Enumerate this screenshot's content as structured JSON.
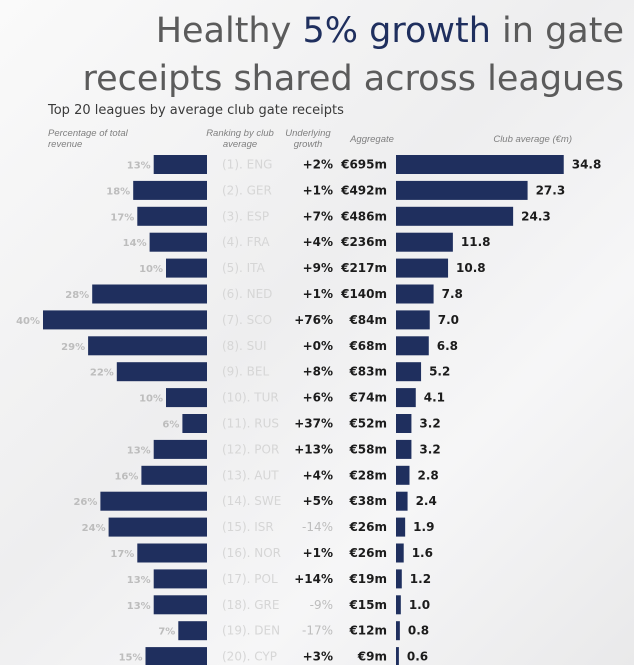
{
  "headline": {
    "line1_pre": "Healthy ",
    "line1_highlight": "5% growth",
    "line1_post": " in gate",
    "line2": "receipts shared across leagues"
  },
  "chart_data": {
    "type": "bar",
    "title": "Top 20 leagues by average club gate receipts",
    "column_headers": {
      "percentage": "Percentage of total revenue",
      "ranking": "Ranking by club average",
      "growth": "Underlying growth",
      "aggregate": "Aggregate",
      "club_average": "Club average (€m)"
    },
    "rows": [
      {
        "rank": "(1). ENG",
        "pct": 13,
        "pct_label": "13%",
        "growth": "+2%",
        "aggregate": "€695m",
        "avg": 34.8,
        "avg_label": "34.8"
      },
      {
        "rank": "(2). GER",
        "pct": 18,
        "pct_label": "18%",
        "growth": "+1%",
        "aggregate": "€492m",
        "avg": 27.3,
        "avg_label": "27.3"
      },
      {
        "rank": "(3). ESP",
        "pct": 17,
        "pct_label": "17%",
        "growth": "+7%",
        "aggregate": "€486m",
        "avg": 24.3,
        "avg_label": "24.3"
      },
      {
        "rank": "(4). FRA",
        "pct": 14,
        "pct_label": "14%",
        "growth": "+4%",
        "aggregate": "€236m",
        "avg": 11.8,
        "avg_label": "11.8"
      },
      {
        "rank": "(5). ITA",
        "pct": 10,
        "pct_label": "10%",
        "growth": "+9%",
        "aggregate": "€217m",
        "avg": 10.8,
        "avg_label": "10.8"
      },
      {
        "rank": "(6). NED",
        "pct": 28,
        "pct_label": "28%",
        "growth": "+1%",
        "aggregate": "€140m",
        "avg": 7.8,
        "avg_label": "7.8"
      },
      {
        "rank": "(7). SCO",
        "pct": 40,
        "pct_label": "40%",
        "growth": "+76%",
        "aggregate": "€84m",
        "avg": 7.0,
        "avg_label": "7.0"
      },
      {
        "rank": "(8). SUI",
        "pct": 29,
        "pct_label": "29%",
        "growth": "+0%",
        "aggregate": "€68m",
        "avg": 6.8,
        "avg_label": "6.8"
      },
      {
        "rank": "(9). BEL",
        "pct": 22,
        "pct_label": "22%",
        "growth": "+8%",
        "aggregate": "€83m",
        "avg": 5.2,
        "avg_label": "5.2"
      },
      {
        "rank": "(10). TUR",
        "pct": 10,
        "pct_label": "10%",
        "growth": "+6%",
        "aggregate": "€74m",
        "avg": 4.1,
        "avg_label": "4.1"
      },
      {
        "rank": "(11). RUS",
        "pct": 6,
        "pct_label": "6%",
        "growth": "+37%",
        "aggregate": "€52m",
        "avg": 3.2,
        "avg_label": "3.2"
      },
      {
        "rank": "(12). POR",
        "pct": 13,
        "pct_label": "13%",
        "growth": "+13%",
        "aggregate": "€58m",
        "avg": 3.2,
        "avg_label": "3.2"
      },
      {
        "rank": "(13). AUT",
        "pct": 16,
        "pct_label": "16%",
        "growth": "+4%",
        "aggregate": "€28m",
        "avg": 2.8,
        "avg_label": "2.8"
      },
      {
        "rank": "(14). SWE",
        "pct": 26,
        "pct_label": "26%",
        "growth": "+5%",
        "aggregate": "€38m",
        "avg": 2.4,
        "avg_label": "2.4"
      },
      {
        "rank": "(15). ISR",
        "pct": 24,
        "pct_label": "24%",
        "growth": "-14%",
        "aggregate": "€26m",
        "avg": 1.9,
        "avg_label": "1.9"
      },
      {
        "rank": "(16). NOR",
        "pct": 17,
        "pct_label": "17%",
        "growth": "+1%",
        "aggregate": "€26m",
        "avg": 1.6,
        "avg_label": "1.6"
      },
      {
        "rank": "(17). POL",
        "pct": 13,
        "pct_label": "13%",
        "growth": "+14%",
        "aggregate": "€19m",
        "avg": 1.2,
        "avg_label": "1.2"
      },
      {
        "rank": "(18). GRE",
        "pct": 13,
        "pct_label": "13%",
        "growth": "-9%",
        "aggregate": "€15m",
        "avg": 1.0,
        "avg_label": "1.0"
      },
      {
        "rank": "(19). DEN",
        "pct": 7,
        "pct_label": "7%",
        "growth": "-17%",
        "aggregate": "€12m",
        "avg": 0.8,
        "avg_label": "0.8"
      },
      {
        "rank": "(20). CYP",
        "pct": 15,
        "pct_label": "15%",
        "growth": "+3%",
        "aggregate": "€9m",
        "avg": 0.6,
        "avg_label": "0.6"
      }
    ],
    "colors": {
      "bar": "#1f2f5e",
      "highlight": "#1f2f5e"
    }
  }
}
